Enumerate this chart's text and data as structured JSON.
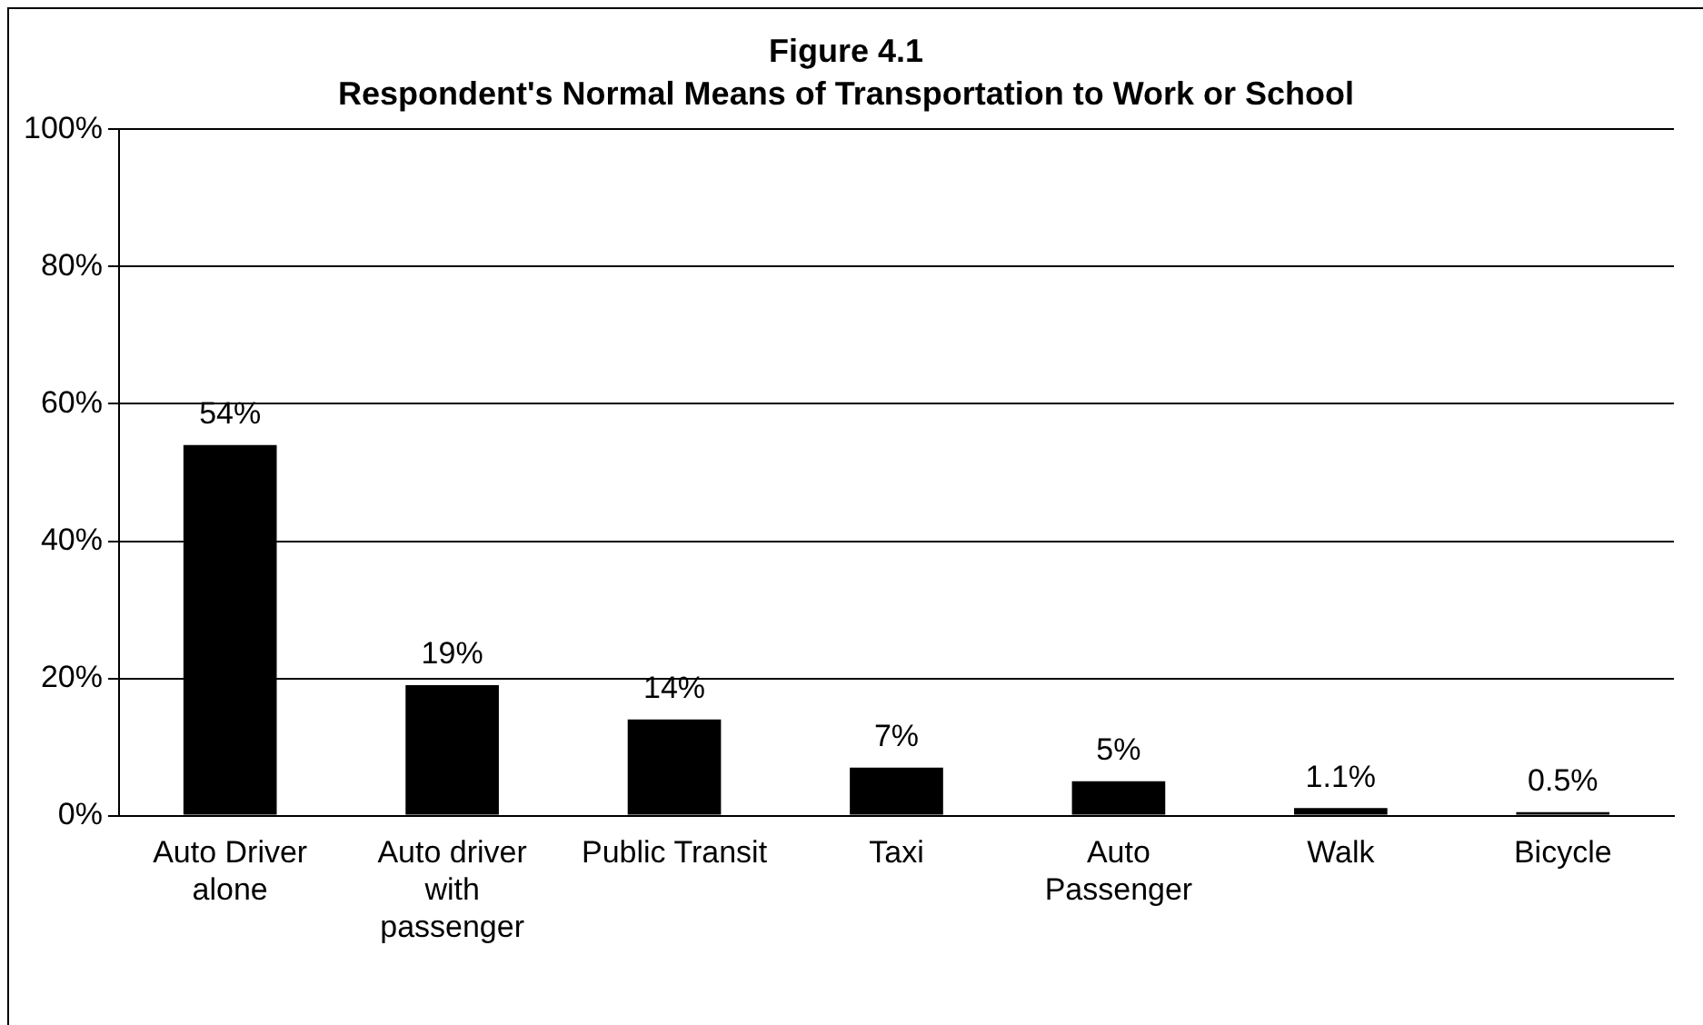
{
  "chart_data": {
    "type": "bar",
    "title": "Figure 4.1",
    "subtitle": "Respondent's Normal Means of Transportation to Work or School",
    "categories": [
      "Auto Driver alone",
      "Auto driver with passenger",
      "Public Transit",
      "Taxi",
      "Auto Passenger",
      "Walk",
      "Bicycle"
    ],
    "values": [
      54,
      19,
      14,
      7,
      5,
      1.1,
      0.5
    ],
    "value_labels": [
      "54%",
      "19%",
      "14%",
      "7%",
      "5%",
      "1.1%",
      "0.5%"
    ],
    "color": "#000000",
    "ylim": [
      0,
      100
    ],
    "yticks": [
      {
        "value": 0,
        "label": "0%"
      },
      {
        "value": 20,
        "label": "20%"
      },
      {
        "value": 40,
        "label": "40%"
      },
      {
        "value": 60,
        "label": "60%"
      },
      {
        "value": 80,
        "label": "80%"
      },
      {
        "value": 100,
        "label": "100%"
      }
    ],
    "grid": "y",
    "legend": false
  }
}
